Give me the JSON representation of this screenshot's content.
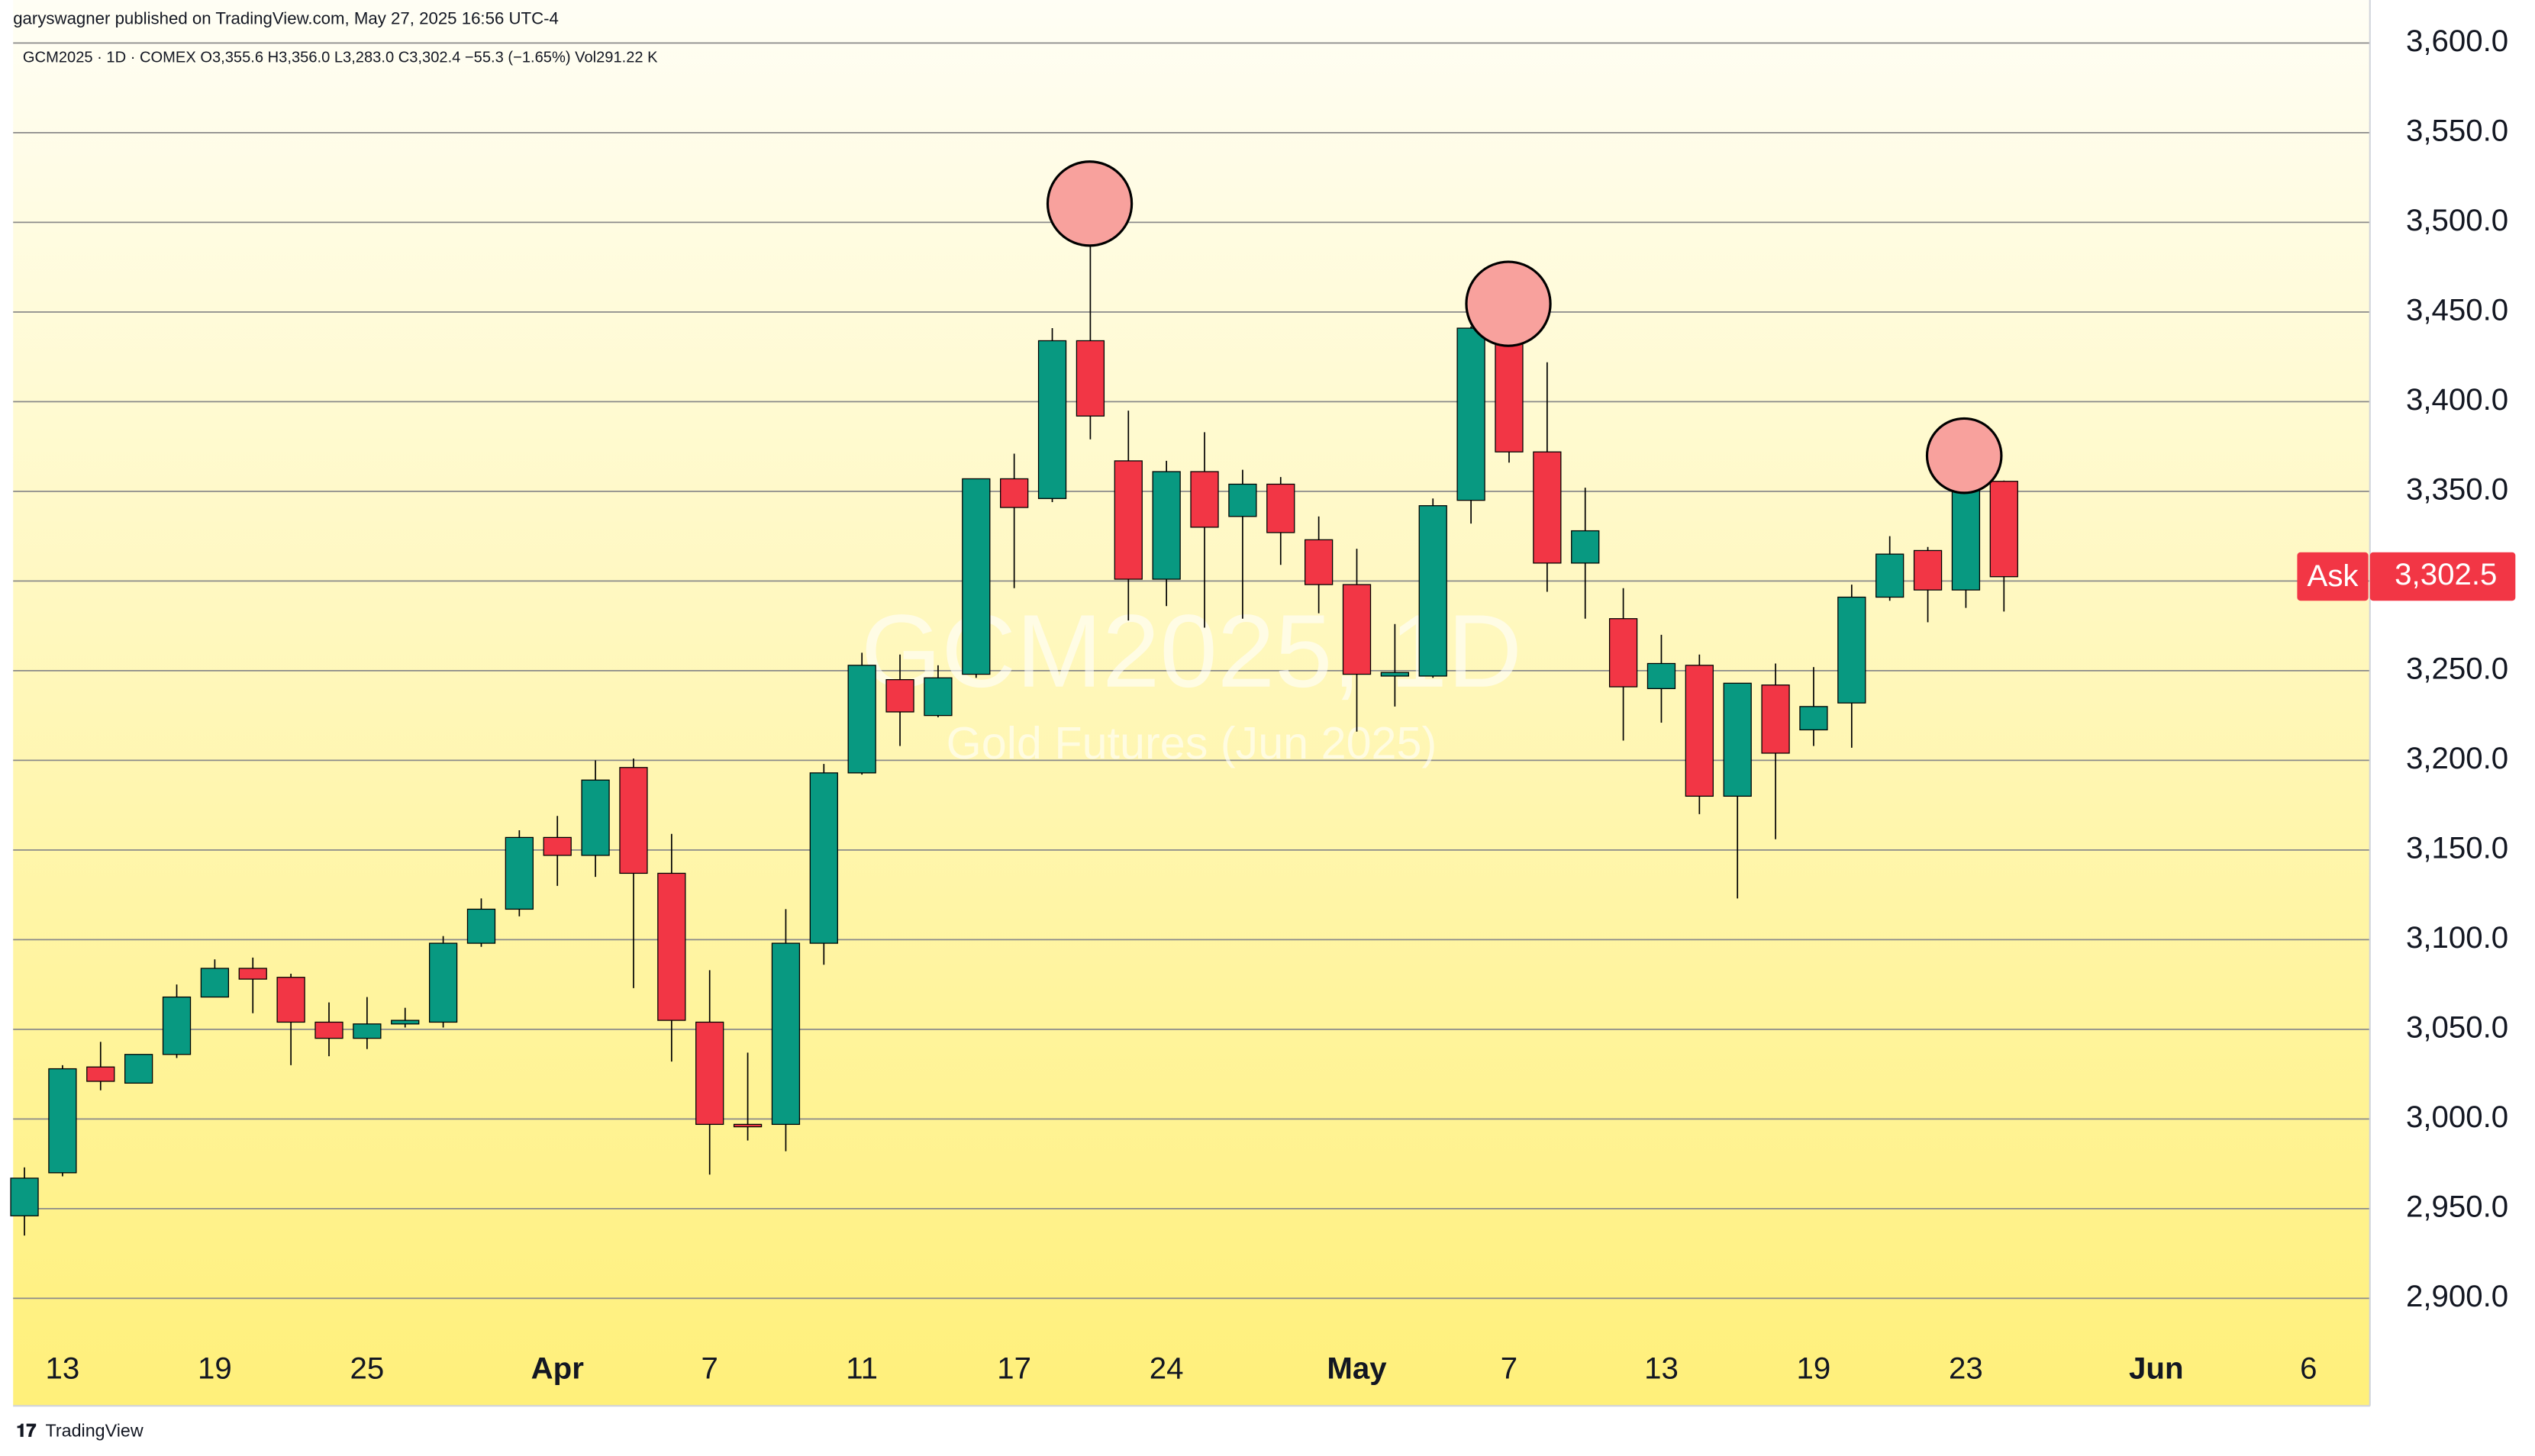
{
  "header": {
    "publisher": "garyswagner published on TradingView.com, May 27, 2025 16:56 UTC-4",
    "legend": "GCM2025 · 1D · COMEX  O3,355.6  H3,356.0  L3,283.0  C3,302.4  −55.3 (−1.65%)  Vol291.22 K"
  },
  "footer": {
    "brand": "TradingView"
  },
  "chart_data": {
    "type": "candlestick",
    "watermark": "GCM2025, 1D",
    "watermark_subtitle": "Gold Futures (Jun 2025)",
    "up_color": "#089981",
    "down_color": "#f23645",
    "grid": true,
    "ylim": [
      2840,
      3624
    ],
    "yticks": [
      {
        "value": 2900,
        "label": "2,900.0"
      },
      {
        "value": 2950,
        "label": "2,950.0"
      },
      {
        "value": 3000,
        "label": "3,000.0"
      },
      {
        "value": 3050,
        "label": "3,050.0"
      },
      {
        "value": 3100,
        "label": "3,100.0"
      },
      {
        "value": 3150,
        "label": "3,150.0"
      },
      {
        "value": 3200,
        "label": "3,200.0"
      },
      {
        "value": 3250,
        "label": "3,250.0"
      },
      {
        "value": 3300,
        "label": "3,300.0"
      },
      {
        "value": 3350,
        "label": "3,350.0"
      },
      {
        "value": 3400,
        "label": "3,400.0"
      },
      {
        "value": 3450,
        "label": "3,450.0"
      },
      {
        "value": 3500,
        "label": "3,500.0"
      },
      {
        "value": 3550,
        "label": "3,550.0"
      },
      {
        "value": 3600,
        "label": "3,600.0"
      }
    ],
    "categories": [
      null,
      "13",
      null,
      null,
      null,
      "19",
      null,
      null,
      null,
      "25",
      null,
      null,
      null,
      null,
      "Apr",
      null,
      null,
      null,
      "7",
      null,
      null,
      null,
      "11",
      null,
      null,
      null,
      "17",
      null,
      null,
      null,
      "24",
      null,
      null,
      null,
      null,
      "May",
      null,
      null,
      null,
      "7",
      null,
      null,
      null,
      "13",
      null,
      null,
      null,
      "19",
      null,
      null,
      null,
      "23",
      null,
      null,
      null,
      null,
      "Jun",
      null,
      null,
      null,
      "6"
    ],
    "open": [
      2946,
      2970,
      3029,
      3020,
      3036,
      3068,
      3084,
      3079,
      3054,
      3045,
      3053,
      3054,
      3098,
      3117,
      3157,
      3147,
      3196,
      3137,
      3054,
      2997,
      2997,
      3098,
      3193,
      3245,
      3225,
      3248,
      3357,
      3346,
      3434,
      3367,
      3301,
      3361,
      3336,
      3354,
      3323,
      3298,
      3247,
      3247,
      3345,
      3447,
      3372,
      3310,
      3279,
      3240,
      3253,
      3180,
      3242,
      3217,
      3232,
      3291,
      3317,
      3295,
      3355.6,
      null,
      null,
      null,
      null,
      null,
      null,
      null,
      null
    ],
    "high": [
      2973,
      3030,
      3043,
      3036,
      3075,
      3089,
      3090,
      3081,
      3065,
      3068,
      3062,
      3102,
      3123,
      3161,
      3169,
      3200,
      3201,
      3159,
      3083,
      3037,
      3117,
      3198,
      3260,
      3259,
      3253,
      3357,
      3371,
      3441,
      3509,
      3395,
      3367,
      3383,
      3362,
      3358,
      3336,
      3318,
      3276,
      3346,
      3442,
      3449,
      3422,
      3352,
      3296,
      3270,
      3259,
      3243,
      3254,
      3252,
      3298,
      3325,
      3319,
      3365,
      3356,
      null,
      null,
      null,
      null,
      null,
      null,
      null,
      null
    ],
    "low": [
      2935,
      2968,
      3016,
      3020,
      3034,
      3068,
      3059,
      3030,
      3035,
      3039,
      3051,
      3051,
      3096,
      3113,
      3130,
      3135,
      3073,
      3032,
      2969,
      2988,
      2982,
      3086,
      3192,
      3208,
      3224,
      3246,
      3296,
      3344,
      3379,
      3278,
      3286,
      3274,
      3279,
      3309,
      3282,
      3216,
      3230,
      3246,
      3332,
      3366,
      3294,
      3279,
      3211,
      3221,
      3170,
      3123,
      3156,
      3208,
      3207,
      3289,
      3277,
      3285,
      3283,
      null,
      null,
      null,
      null,
      null,
      null,
      null,
      null
    ],
    "close": [
      2967,
      3028,
      3021,
      3036,
      3068,
      3084,
      3078,
      3054,
      3045,
      3053,
      3055,
      3098,
      3117,
      3157,
      3147,
      3189,
      3137,
      3055,
      2997,
      2996,
      3098,
      3193,
      3253,
      3227,
      3246,
      3357,
      3341,
      3434,
      3392,
      3301,
      3361,
      3330,
      3354,
      3327,
      3298,
      3248,
      3249,
      3342,
      3441,
      3372,
      3310,
      3328,
      3241,
      3254,
      3180,
      3243,
      3204,
      3230,
      3291,
      3315,
      3295,
      3357,
      3302.4,
      null,
      null,
      null,
      null,
      null,
      null,
      null,
      null
    ],
    "price_tag": {
      "name": "Ask",
      "value": 3302.5,
      "value_label": "3,302.5"
    }
  }
}
